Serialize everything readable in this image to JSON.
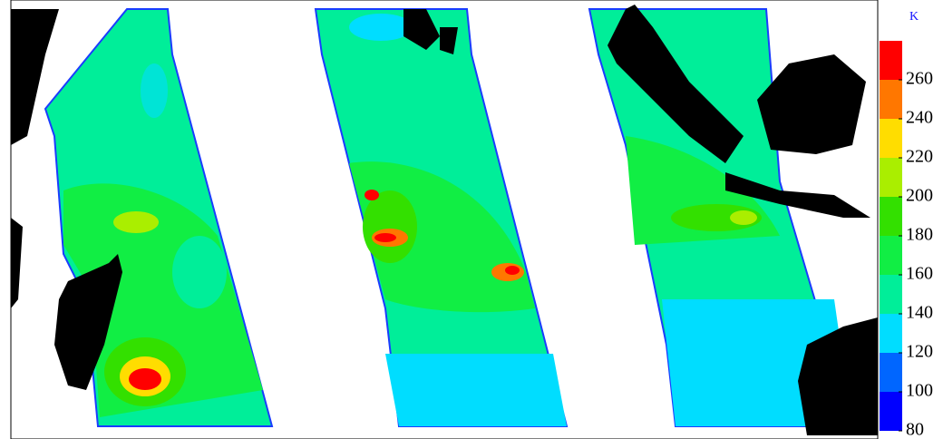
{
  "colorbar": {
    "unit": "K",
    "clim": [
      80,
      280
    ],
    "ticks": [
      80,
      100,
      120,
      140,
      160,
      180,
      200,
      220,
      240,
      260
    ],
    "colors": [
      "#0000ff",
      "#0066ff",
      "#00ddff",
      "#00ee99",
      "#11ee44",
      "#33e000",
      "#aaee00",
      "#ffdd00",
      "#ff7700",
      "#ff0000"
    ]
  }
}
